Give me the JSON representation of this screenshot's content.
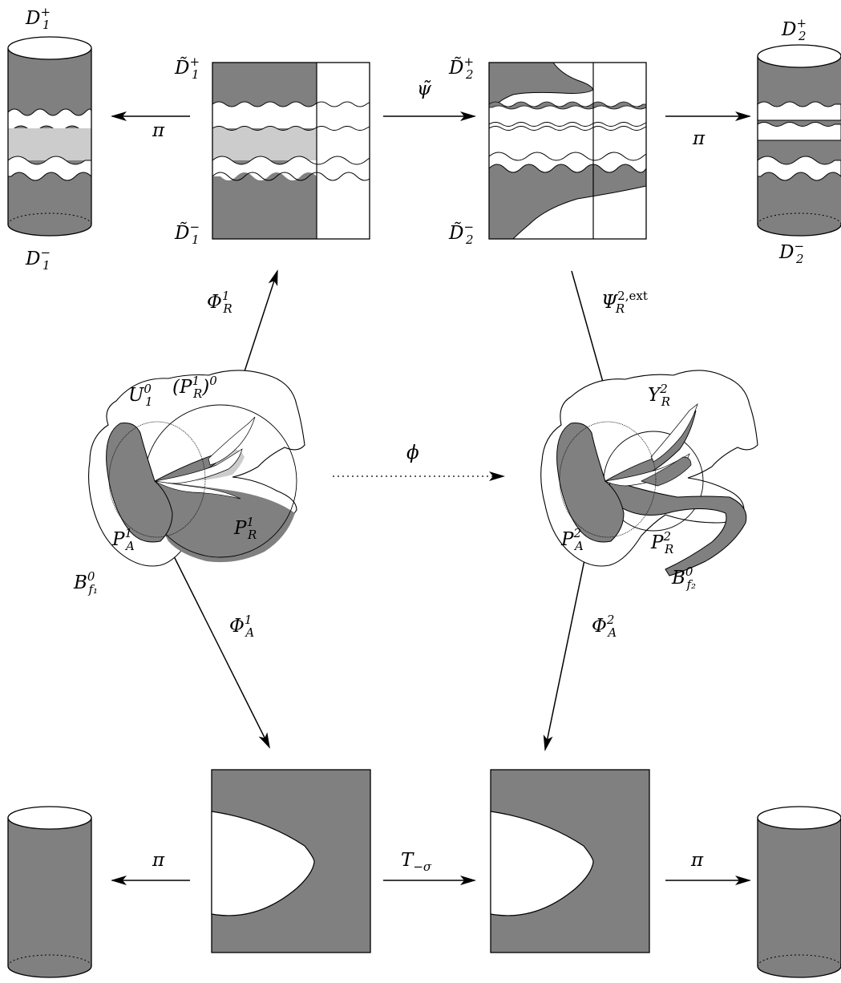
{
  "labels": {
    "D1p": {
      "main": "D",
      "sub": "1",
      "sup": "+"
    },
    "D1m": {
      "main": "D",
      "sub": "1",
      "sup": "−"
    },
    "D2p": {
      "main": "D",
      "sub": "2",
      "sup": "+"
    },
    "D2m": {
      "main": "D",
      "sub": "2",
      "sup": "−"
    },
    "tD1p": {
      "main": "D̃",
      "sub": "1",
      "sup": "+"
    },
    "tD1m": {
      "main": "D̃",
      "sub": "1",
      "sup": "−"
    },
    "tD2p": {
      "main": "D̃",
      "sub": "2",
      "sup": "+"
    },
    "tD2m": {
      "main": "D̃",
      "sub": "2",
      "sup": "−"
    },
    "pi": "π",
    "tpsi": "ψ̃",
    "PhiR1": {
      "main": "Φ",
      "sub": "R",
      "sup": "1"
    },
    "PsiR2ext": {
      "main": "Ψ",
      "sub": "R",
      "sup": "2,ext"
    },
    "U10": {
      "main": "U",
      "sub": "1",
      "sup": "0"
    },
    "PR10": {
      "open": "(P",
      "sub": "R",
      "sup": "1",
      "close": ")",
      "sup2": "0"
    },
    "phi": "ϕ",
    "YR2": {
      "main": "Y",
      "sub": "R",
      "sup": "2"
    },
    "PA1": {
      "main": "P",
      "sub": "A",
      "sup": "1"
    },
    "PR1": {
      "main": "P",
      "sub": "R",
      "sup": "1"
    },
    "PA2": {
      "main": "P",
      "sub": "A",
      "sup": "2"
    },
    "PR2": {
      "main": "P",
      "sub": "R",
      "sup": "2"
    },
    "Bf1": {
      "main": "B",
      "sub": "f₁",
      "sup": "0"
    },
    "Bf2": {
      "main": "B",
      "sub": "f₂",
      "sup": "0"
    },
    "PhiA1": {
      "main": "Φ",
      "sub": "A",
      "sup": "1"
    },
    "PhiA2": {
      "main": "Φ",
      "sub": "A",
      "sup": "2"
    },
    "Tsigma": {
      "main": "T",
      "sub": "−σ"
    }
  },
  "colors": {
    "dark": "#808080",
    "light": "#cccccc",
    "stroke": "#000000",
    "background": "#ffffff"
  }
}
